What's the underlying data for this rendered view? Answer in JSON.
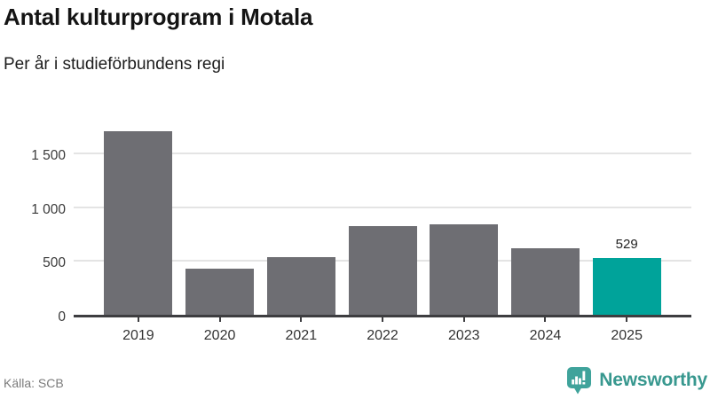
{
  "header": {
    "title": "Antal kulturprogram i Motala",
    "subtitle": "Per år i studieförbundens regi"
  },
  "chart_data": {
    "type": "bar",
    "title": "Antal kulturprogram i Motala",
    "subtitle": "Per år i studieförbundens regi",
    "categories": [
      "2019",
      "2020",
      "2021",
      "2022",
      "2023",
      "2024",
      "2025"
    ],
    "values": [
      1710,
      430,
      535,
      825,
      840,
      620,
      529
    ],
    "value_labels": [
      null,
      null,
      null,
      null,
      null,
      null,
      "529"
    ],
    "highlighted_category": "2025",
    "xlabel": "",
    "ylabel": "",
    "ylim": [
      0,
      1800
    ],
    "yticks": [
      {
        "value": 0,
        "label": "0"
      },
      {
        "value": 500,
        "label": "500"
      },
      {
        "value": 1000,
        "label": "1 000"
      },
      {
        "value": 1500,
        "label": "1 500"
      }
    ],
    "grid": "horizontal-only",
    "legend": "none",
    "bar_color": "#6e6e73",
    "highlight_color": "#00a39a",
    "axis_line_color": "#3d3d40",
    "gridline_color": "#e4e4e4"
  },
  "footer": {
    "source": "Källa: SCB",
    "brand": {
      "name": "Newsworthy",
      "color": "#38988f",
      "icon": "newsworthy-bar-chart-speech-bubble-icon"
    }
  }
}
